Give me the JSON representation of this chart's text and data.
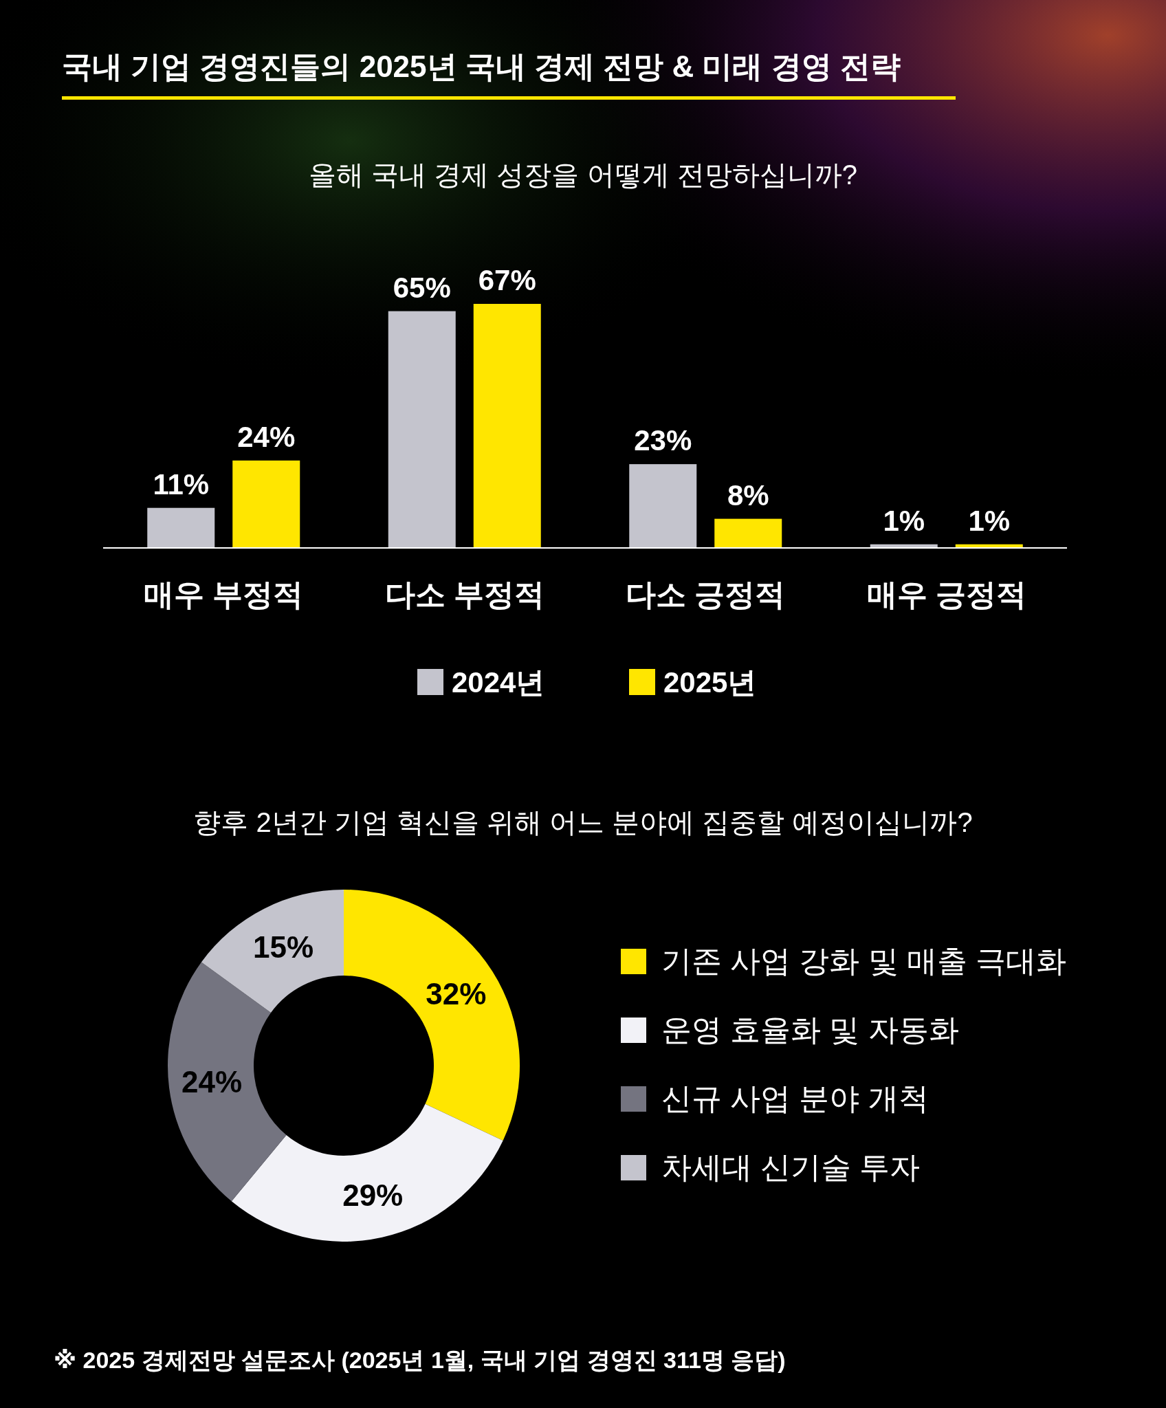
{
  "chart_data": [
    {
      "type": "bar",
      "title": "국내 기업 경영진들의 2025년 국내 경제 전망 & 미래 경영 전략",
      "subtitle": "올해 국내 경제 성장을 어떻게 전망하십니까?",
      "categories": [
        "매우 부정적",
        "다소 부정적",
        "다소 긍정적",
        "매우 긍정적"
      ],
      "series": [
        {
          "name": "2024년",
          "color": "#c4c4cd",
          "values": [
            11,
            65,
            23,
            1
          ],
          "value_labels": [
            "11%",
            "65%",
            "23%",
            "1%"
          ]
        },
        {
          "name": "2025년",
          "color": "#ffe600",
          "values": [
            24,
            67,
            8,
            1
          ],
          "value_labels": [
            "24%",
            "67%",
            "8%",
            "1%"
          ]
        }
      ],
      "legend": "bottom"
    },
    {
      "type": "donut",
      "title": "향후 2년간 기업 혁신을 위해 어느 분야에 집중할 예정이십니까?",
      "categories": [
        "기존 사업 강화 및 매출 극대화",
        "운영 효율화 및 자동화",
        "신규 사업 분야 개척",
        "차세대 신기술 투자"
      ],
      "values": [
        32,
        29,
        24,
        15
      ],
      "colors": [
        "#ffe600",
        "#f2f2f7",
        "#747480",
        "#c4c4cd"
      ],
      "value_labels": [
        "32%",
        "29%",
        "24%",
        "15%"
      ],
      "legend": "right",
      "annotations": [
        "※ 2025 경제전망 설문조사 (2025년 1월, 국내 기업 경영진 311명 응답)"
      ]
    }
  ]
}
